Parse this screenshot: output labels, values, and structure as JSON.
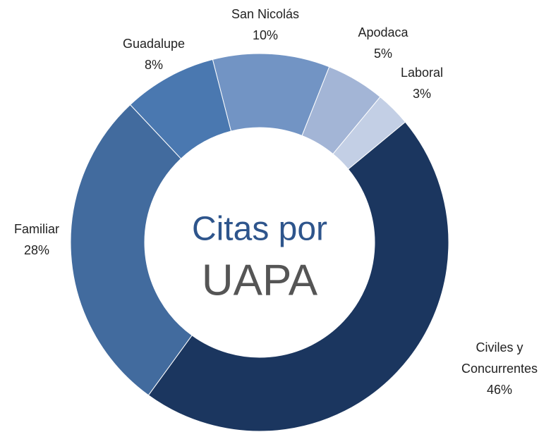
{
  "chart_data": {
    "type": "donut",
    "center_text": [
      "Citas por",
      "UAPA"
    ],
    "categories": [
      "Civiles y Concurrentes",
      "Familiar",
      "Guadalupe",
      "San Nicolás",
      "Apodaca",
      "Laboral"
    ],
    "values": [
      46,
      28,
      8,
      10,
      5,
      3
    ],
    "value_labels": [
      "46%",
      "28%",
      "8%",
      "10%",
      "5%",
      "3%"
    ],
    "colors": [
      "#1b365f",
      "#426b9e",
      "#4a78b0",
      "#7294c4",
      "#a3b5d6",
      "#c3cfe5"
    ]
  }
}
